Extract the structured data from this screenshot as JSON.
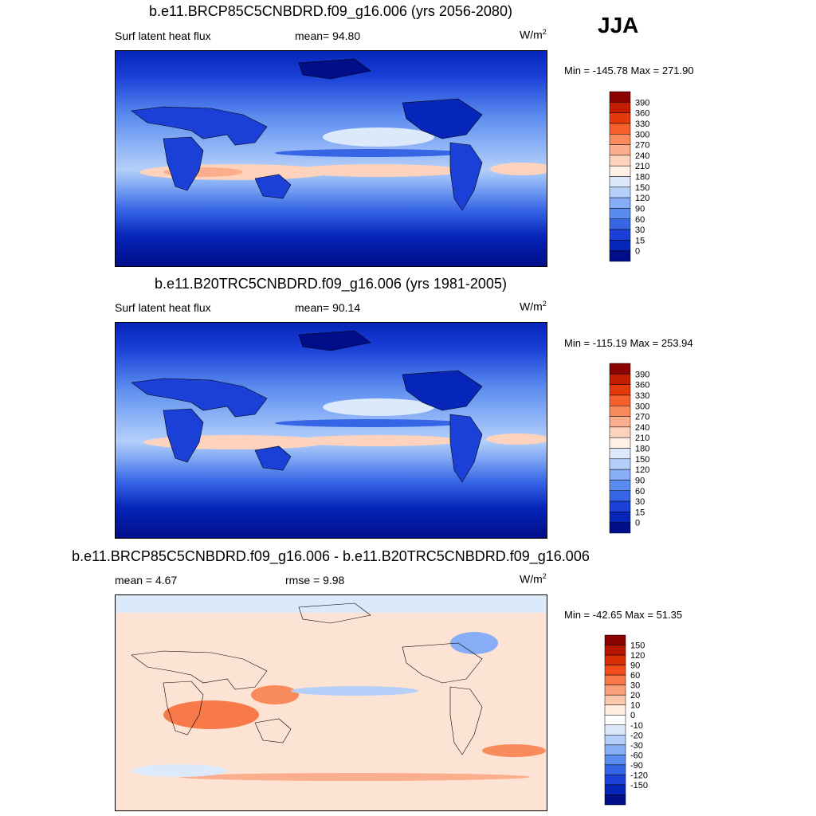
{
  "season": "JJA",
  "panels": [
    {
      "title": "b.e11.BRCP85C5CNBDRD.f09_g16.006 (yrs 2056-2080)",
      "left_label": "Surf latent heat flux",
      "center_label": "mean=  94.80",
      "units": "W/m",
      "units_exp": "2",
      "minmax": "Min = -145.78 Max = 271.90",
      "colorbar": {
        "labels": [
          "390",
          "360",
          "330",
          "300",
          "270",
          "240",
          "210",
          "180",
          "150",
          "120",
          "90",
          "60",
          "30",
          "15",
          "0"
        ],
        "colors": [
          "#8b0000",
          "#c21d00",
          "#e33a0b",
          "#f4612a",
          "#f98a5c",
          "#fbae8e",
          "#fdd3bd",
          "#fff0e3",
          "#dbe9fb",
          "#b4cffa",
          "#86adf5",
          "#5a8bee",
          "#3665e6",
          "#1a40d8",
          "#0625b9",
          "#000e8a"
        ]
      }
    },
    {
      "title": "b.e11.B20TRC5CNBDRD.f09_g16.006 (yrs 1981-2005)",
      "left_label": "Surf latent heat flux",
      "center_label": "mean=  90.14",
      "units": "W/m",
      "units_exp": "2",
      "minmax": "Min = -115.19 Max = 253.94",
      "colorbar": {
        "labels": [
          "390",
          "360",
          "330",
          "300",
          "270",
          "240",
          "210",
          "180",
          "150",
          "120",
          "90",
          "60",
          "30",
          "15",
          "0"
        ],
        "colors": [
          "#8b0000",
          "#c21d00",
          "#e33a0b",
          "#f4612a",
          "#f98a5c",
          "#fbae8e",
          "#fdd3bd",
          "#fff0e3",
          "#dbe9fb",
          "#b4cffa",
          "#86adf5",
          "#5a8bee",
          "#3665e6",
          "#1a40d8",
          "#0625b9",
          "#000e8a"
        ]
      }
    },
    {
      "title": "b.e11.BRCP85C5CNBDRD.f09_g16.006 - b.e11.B20TRC5CNBDRD.f09_g16.006",
      "left_label": "mean =   4.67",
      "center_label": "rmse =   9.98",
      "units": "W/m",
      "units_exp": "2",
      "minmax": "Min = -42.65 Max =  51.35",
      "colorbar": {
        "labels": [
          "150",
          "120",
          "90",
          "60",
          "30",
          "20",
          "10",
          "0",
          "-10",
          "-20",
          "-30",
          "-60",
          "-90",
          "-120",
          "-150"
        ],
        "colors": [
          "#8b0000",
          "#b51600",
          "#d92e05",
          "#f14d1c",
          "#f8794a",
          "#fba17b",
          "#fcc8ab",
          "#ffeee0",
          "#ffffff",
          "#dbe9fb",
          "#b4cffa",
          "#86adf5",
          "#5a8bee",
          "#3665e6",
          "#1a40d8",
          "#0625b9",
          "#000e8a"
        ]
      }
    }
  ]
}
